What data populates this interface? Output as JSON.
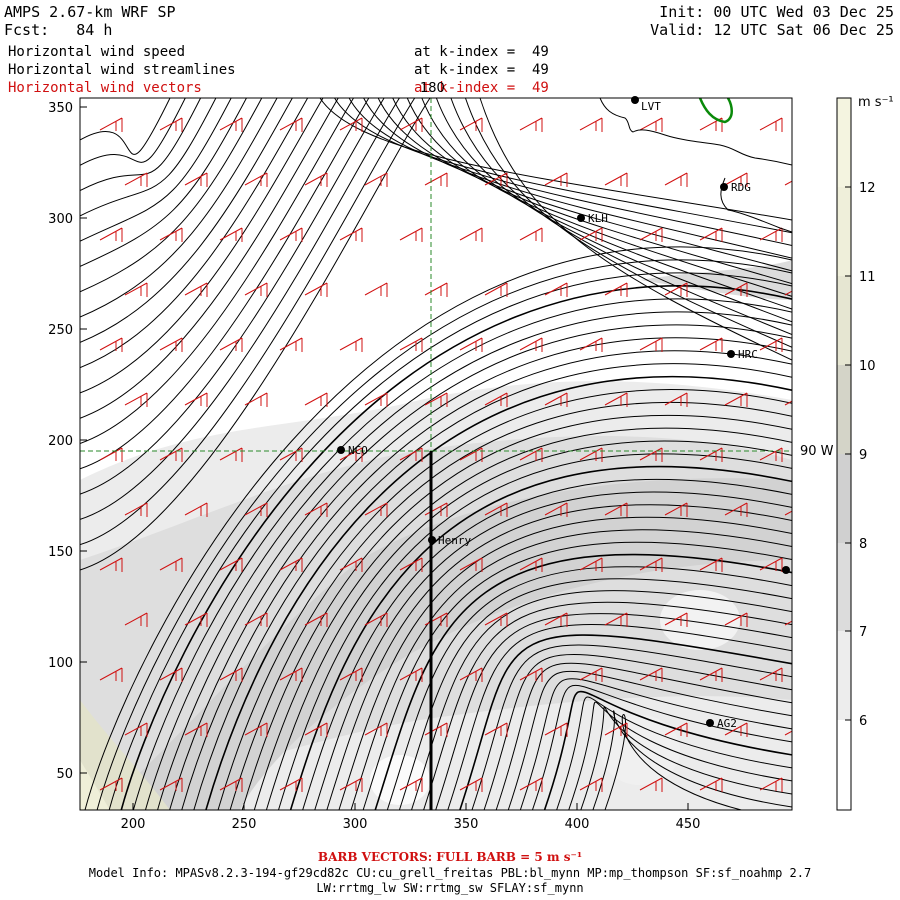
{
  "header": {
    "model": "AMPS 2.67-km WRF SP",
    "forecast": "Fcst:   84 h",
    "init": "Init: 00 UTC Wed 03 Dec 25",
    "valid": "Valid: 12 UTC Sat 06 Dec 25",
    "fields": [
      {
        "name": "Horizontal wind speed",
        "level": "at k-index =  49",
        "color": "#000000"
      },
      {
        "name": "Horizontal wind streamlines",
        "level": "at k-index =  49",
        "color": "#000000"
      },
      {
        "name": "Horizontal wind vectors",
        "level": "at k-index =  49",
        "color": "#d01010"
      }
    ]
  },
  "map": {
    "x_ticks": [
      "200",
      "250",
      "300",
      "350",
      "400",
      "450"
    ],
    "y_ticks": [
      "50",
      "100",
      "150",
      "200",
      "250",
      "300",
      "350"
    ],
    "meridian_label": "180",
    "parallel_label": "90 W",
    "stations": [
      {
        "id": "LVT",
        "label": "LVT"
      },
      {
        "id": "RDG",
        "label": "RDG"
      },
      {
        "id": "KLH",
        "label": "KLH"
      },
      {
        "id": "HRC",
        "label": "HRC"
      },
      {
        "id": "NCO",
        "label": "NCO"
      },
      {
        "id": "Henry",
        "label": "Henry"
      },
      {
        "id": "AG2",
        "label": "AG2"
      }
    ]
  },
  "colorbar": {
    "units": "m s⁻¹",
    "labels": [
      "6",
      "7",
      "8",
      "9",
      "10",
      "11",
      "12"
    ],
    "colors": [
      "#ffffff",
      "#ededed",
      "#dcdcdc",
      "#cdcdcd",
      "#d0d0c4",
      "#e8e8d0",
      "#f2f2dc"
    ]
  },
  "footer": {
    "barb_title": "BARB VECTORS:  FULL BARB = 5 m s⁻¹",
    "model_info": "Model Info: MPASv8.2.3-194-gf29cd82c CU:cu_grell_freitas PBL:bl_mynn MP:mp_thompson SF:sf_noahmp 2.7",
    "model_info2": "LW:rrtmg_lw SW:rrtmg_sw SFLAY:sf_mynn"
  }
}
